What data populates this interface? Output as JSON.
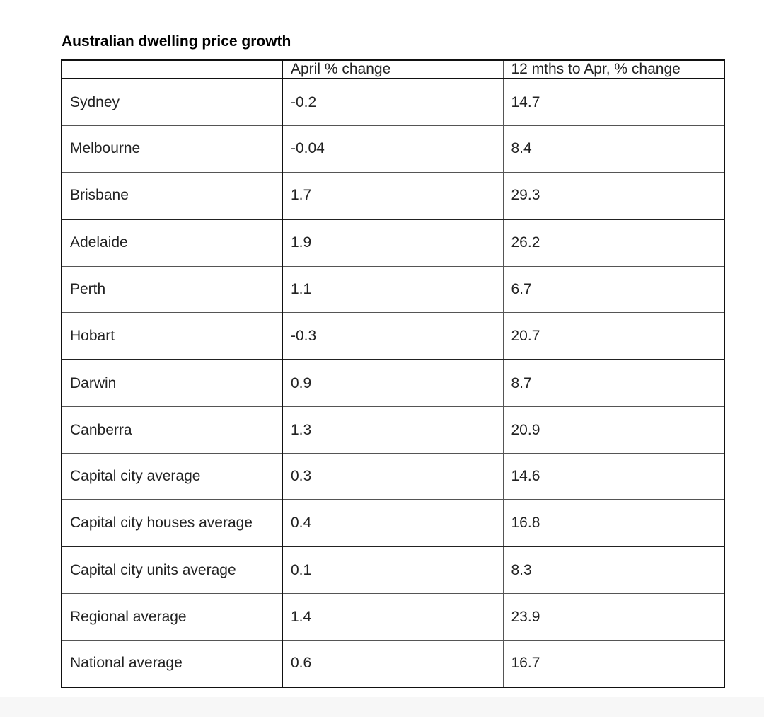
{
  "title": "Australian dwelling price growth",
  "table": {
    "headers": [
      "",
      "April % change",
      "12 mths to Apr, % change"
    ],
    "rows": [
      {
        "region": "Sydney",
        "april_change": "-0.2",
        "annual_change": "14.7"
      },
      {
        "region": "Melbourne",
        "april_change": "-0.04",
        "annual_change": "8.4"
      },
      {
        "region": "Brisbane",
        "april_change": "1.7",
        "annual_change": "29.3"
      },
      {
        "region": "Adelaide",
        "april_change": "1.9",
        "annual_change": "26.2"
      },
      {
        "region": "Perth",
        "april_change": "1.1",
        "annual_change": "6.7"
      },
      {
        "region": "Hobart",
        "april_change": "-0.3",
        "annual_change": "20.7"
      },
      {
        "region": "Darwin",
        "april_change": "0.9",
        "annual_change": "8.7"
      },
      {
        "region": "Canberra",
        "april_change": "1.3",
        "annual_change": "20.9"
      },
      {
        "region": "Capital city average",
        "april_change": "0.3",
        "annual_change": "14.6"
      },
      {
        "region": "Capital city houses average",
        "april_change": "0.4",
        "annual_change": "16.8"
      },
      {
        "region": "Capital city units average",
        "april_change": "0.1",
        "annual_change": "8.3"
      },
      {
        "region": "Regional average",
        "april_change": "1.4",
        "annual_change": "23.9"
      },
      {
        "region": "National average",
        "april_change": "0.6",
        "annual_change": "16.7"
      }
    ]
  }
}
